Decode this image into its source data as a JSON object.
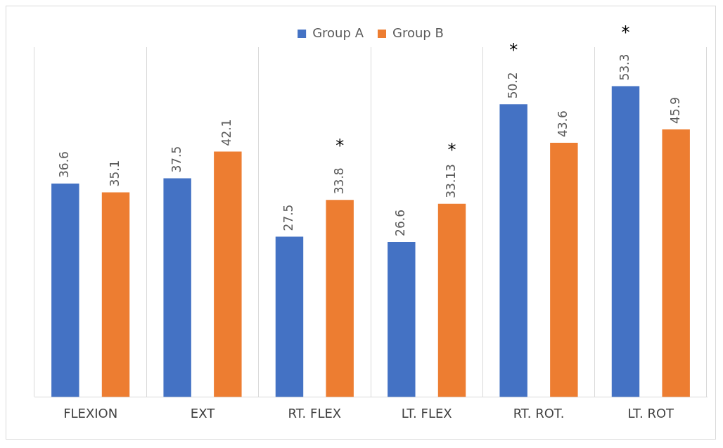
{
  "chart_data": {
    "type": "bar",
    "categories": [
      "FLEXION",
      "EXT",
      "RT. FLEX",
      "LT. FLEX",
      "RT. ROT.",
      "LT. ROT"
    ],
    "series": [
      {
        "name": "Group A",
        "color": "#4472c4",
        "values": [
          36.6,
          37.5,
          27.5,
          26.6,
          50.2,
          53.3
        ]
      },
      {
        "name": "Group B",
        "color": "#ed7d31",
        "values": [
          35.1,
          42.1,
          33.8,
          33.13,
          43.6,
          45.9
        ]
      }
    ],
    "value_labels": [
      [
        "36.6",
        "37.5",
        "27.5",
        "26.6",
        "50.2",
        "53.3"
      ],
      [
        "35.1",
        "42.1",
        "33.8",
        "33.13",
        "43.6",
        "45.9"
      ]
    ],
    "data_labels": true,
    "grid": "x",
    "legend": "top",
    "annotations": [
      "*",
      "*",
      "*",
      "*"
    ]
  }
}
